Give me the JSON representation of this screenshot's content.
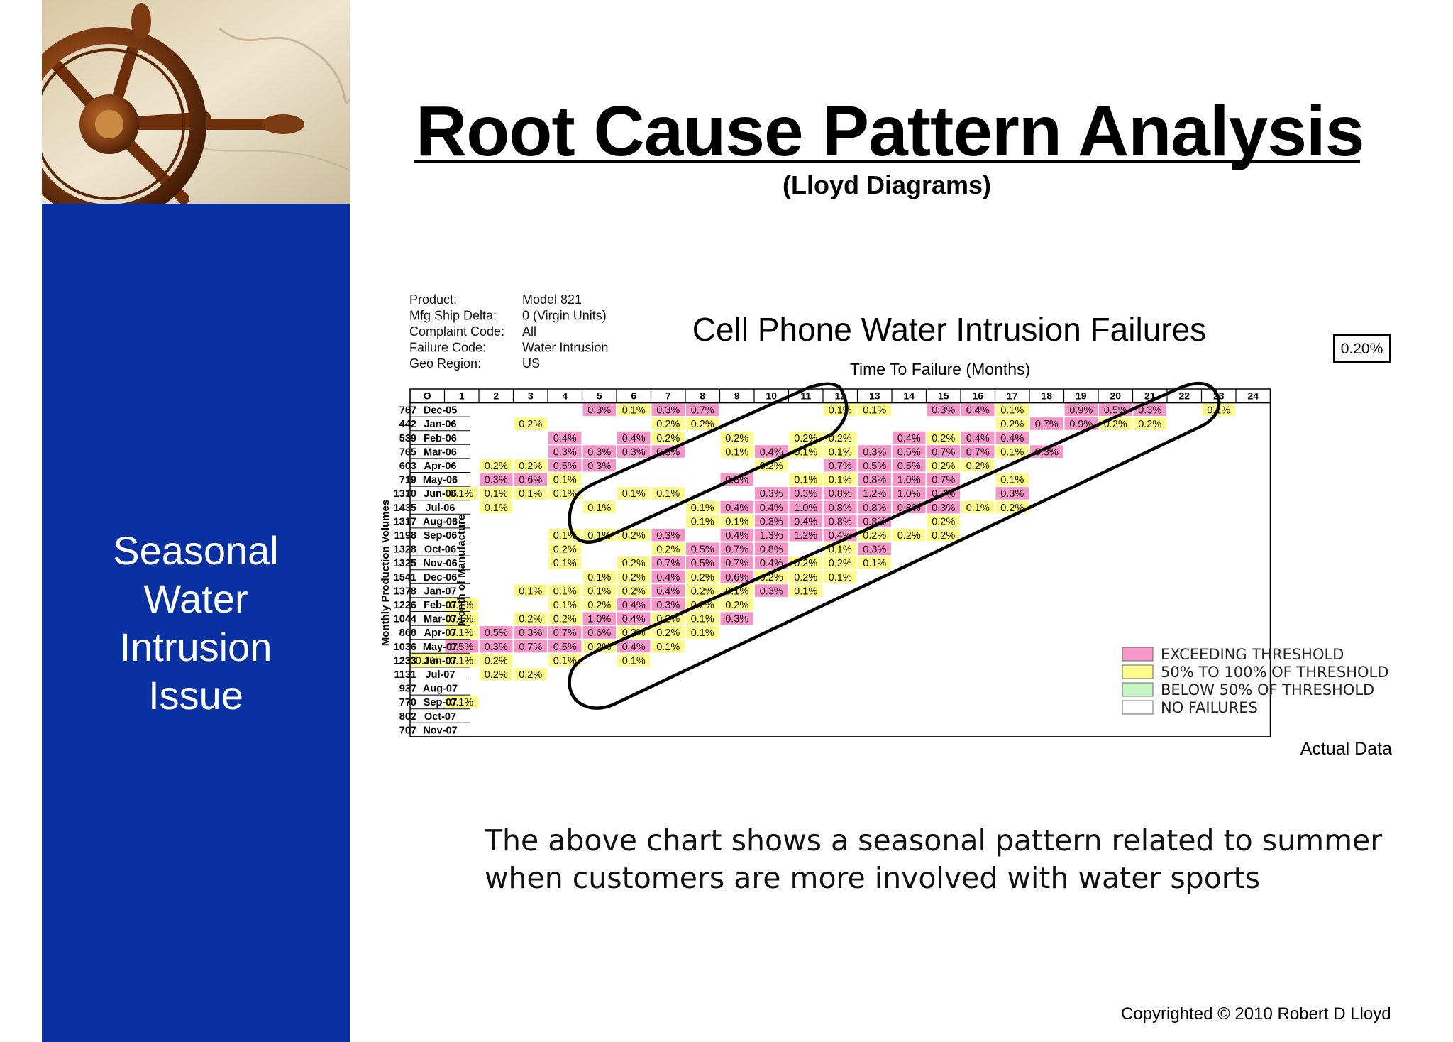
{
  "slide": {
    "title": "Root Cause Pattern Analysis",
    "subtitle": "(Lloyd Diagrams)",
    "side_text": [
      "Seasonal",
      "Water",
      "Intrusion",
      "Issue"
    ],
    "caption_lines": [
      "The above chart shows a seasonal pattern related to summer",
      "when customers are more involved with water sports"
    ],
    "copyright": "Copyrighted © 2010 Robert D Lloyd"
  },
  "colors": {
    "sidebar": "#0a31a1",
    "exceeding": "#f598c9",
    "mid": "#fdfb8c",
    "below": "#c6f5c4",
    "none": "#ffffff"
  },
  "chart_data": {
    "type": "heatmap",
    "title": "Cell Phone Water Intrusion Failures",
    "xlabel": "Time To Failure (Months)",
    "ylabel_volumes": "Monthly Production Volumes",
    "ylabel_months": "Month of Manufacture",
    "threshold_label": "0.20%",
    "footer_note": "Actual Data",
    "info": [
      {
        "label": "Product:",
        "value": "Model 821"
      },
      {
        "label": "Mfg Ship Delta:",
        "value": "0   (Virgin Units)"
      },
      {
        "label": "Complaint Code:",
        "value": "All"
      },
      {
        "label": "Failure Code:",
        "value": "Water Intrusion"
      },
      {
        "label": "Geo Region:",
        "value": "US"
      }
    ],
    "columns": [
      "O",
      "1",
      "2",
      "3",
      "4",
      "5",
      "6",
      "7",
      "8",
      "9",
      "10",
      "11",
      "12",
      "13",
      "14",
      "15",
      "16",
      "17",
      "18",
      "19",
      "20",
      "21",
      "22",
      "23",
      "24"
    ],
    "months": [
      "Dec-05",
      "Jan-06",
      "Feb-06",
      "Mar-06",
      "Apr-06",
      "May-06",
      "Jun-06",
      "Jul-06",
      "Aug-06",
      "Sep-06",
      "Oct-06",
      "Nov-06",
      "Dec-06",
      "Jan-07",
      "Feb-07",
      "Mar-07",
      "Apr-07",
      "May-07",
      "Jun-07",
      "Jul-07",
      "Aug-07",
      "Sep-07",
      "Oct-07",
      "Nov-07"
    ],
    "volumes": [
      "767",
      "442",
      "539",
      "765",
      "603",
      "719",
      "1310",
      "1435",
      "1317",
      "1198",
      "1328",
      "1325",
      "1541",
      "1378",
      "1226",
      "1044",
      "868",
      "1036",
      "1233",
      "1131",
      "937",
      "770",
      "802",
      "707"
    ],
    "rows": [
      [
        null,
        null,
        null,
        null,
        null,
        "0.3%",
        "0.1%",
        "0.3%",
        "0.7%",
        null,
        null,
        null,
        "0.1%",
        "0.1%",
        null,
        "0.3%",
        "0.4%",
        "0.1%",
        null,
        "0.9%",
        "0.5%",
        "0.3%",
        null,
        "0.1%",
        null
      ],
      [
        null,
        null,
        null,
        "0.2%",
        null,
        null,
        null,
        "0.2%",
        "0.2%",
        null,
        null,
        null,
        null,
        null,
        null,
        null,
        null,
        "0.2%",
        "0.7%",
        "0.9%",
        "0.2%",
        "0.2%",
        null,
        null,
        null
      ],
      [
        null,
        null,
        null,
        null,
        "0.4%",
        null,
        "0.4%",
        "0.2%",
        null,
        "0.2%",
        null,
        "0.2%",
        "0.2%",
        null,
        "0.4%",
        "0.2%",
        "0.4%",
        "0.4%",
        null,
        null,
        null,
        null,
        null,
        null,
        null
      ],
      [
        null,
        null,
        null,
        null,
        "0.3%",
        "0.3%",
        "0.3%",
        "0.3%",
        null,
        "0.1%",
        "0.4%",
        "0.1%",
        "0.1%",
        "0.3%",
        "0.5%",
        "0.7%",
        "0.7%",
        "0.1%",
        "0.3%",
        null,
        null,
        null,
        null,
        null,
        null
      ],
      [
        null,
        null,
        "0.2%",
        "0.2%",
        "0.5%",
        "0.3%",
        null,
        null,
        null,
        null,
        "0.2%",
        null,
        "0.7%",
        "0.5%",
        "0.5%",
        "0.2%",
        "0.2%",
        null,
        null,
        null,
        null,
        null,
        null,
        null,
        null
      ],
      [
        null,
        null,
        "0.3%",
        "0.6%",
        "0.1%",
        null,
        null,
        null,
        null,
        "0.3%",
        null,
        "0.1%",
        "0.1%",
        "0.8%",
        "1.0%",
        "0.7%",
        null,
        "0.1%",
        null,
        null,
        null,
        null,
        null,
        null,
        null
      ],
      [
        null,
        "0.1%",
        "0.1%",
        "0.1%",
        "0.1%",
        null,
        "0.1%",
        "0.1%",
        null,
        null,
        "0.3%",
        "0.3%",
        "0.8%",
        "1.2%",
        "1.0%",
        "0.7%",
        null,
        "0.3%",
        null,
        null,
        null,
        null,
        null,
        null,
        null
      ],
      [
        null,
        null,
        "0.1%",
        null,
        null,
        "0.1%",
        null,
        null,
        "0.1%",
        "0.4%",
        "0.4%",
        "1.0%",
        "0.8%",
        "0.8%",
        "0.8%",
        "0.3%",
        "0.1%",
        "0.2%",
        null,
        null,
        null,
        null,
        null,
        null,
        null
      ],
      [
        null,
        null,
        null,
        null,
        null,
        null,
        null,
        null,
        "0.1%",
        "0.1%",
        "0.3%",
        "0.4%",
        "0.8%",
        "0.3%",
        null,
        "0.2%",
        null,
        null,
        null,
        null,
        null,
        null,
        null,
        null,
        null
      ],
      [
        null,
        null,
        null,
        null,
        "0.1%",
        "0.1%",
        "0.2%",
        "0.3%",
        null,
        "0.4%",
        "1.3%",
        "1.2%",
        "0.4%",
        "0.2%",
        "0.2%",
        "0.2%",
        null,
        null,
        null,
        null,
        null,
        null,
        null,
        null,
        null
      ],
      [
        null,
        null,
        null,
        null,
        "0.2%",
        null,
        null,
        "0.2%",
        "0.5%",
        "0.7%",
        "0.8%",
        null,
        "0.1%",
        "0.3%",
        null,
        null,
        null,
        null,
        null,
        null,
        null,
        null,
        null,
        null,
        null
      ],
      [
        null,
        null,
        null,
        null,
        "0.1%",
        null,
        "0.2%",
        "0.7%",
        "0.5%",
        "0.7%",
        "0.4%",
        "0.2%",
        "0.2%",
        "0.1%",
        null,
        null,
        null,
        null,
        null,
        null,
        null,
        null,
        null,
        null,
        null
      ],
      [
        null,
        null,
        null,
        null,
        null,
        "0.1%",
        "0.2%",
        "0.4%",
        "0.2%",
        "0.6%",
        "0.2%",
        "0.2%",
        "0.1%",
        null,
        null,
        null,
        null,
        null,
        null,
        null,
        null,
        null,
        null,
        null,
        null
      ],
      [
        null,
        null,
        null,
        "0.1%",
        "0.1%",
        "0.1%",
        "0.2%",
        "0.4%",
        "0.2%",
        "0.1%",
        "0.3%",
        "0.1%",
        null,
        null,
        null,
        null,
        null,
        null,
        null,
        null,
        null,
        null,
        null,
        null,
        null
      ],
      [
        null,
        "0.1%",
        null,
        null,
        "0.1%",
        "0.2%",
        "0.4%",
        "0.3%",
        "0.2%",
        "0.2%",
        null,
        null,
        null,
        null,
        null,
        null,
        null,
        null,
        null,
        null,
        null,
        null,
        null,
        null,
        null
      ],
      [
        null,
        "0.1%",
        null,
        "0.2%",
        "0.2%",
        "1.0%",
        "0.4%",
        "0.2%",
        "0.1%",
        "0.3%",
        null,
        null,
        null,
        null,
        null,
        null,
        null,
        null,
        null,
        null,
        null,
        null,
        null,
        null,
        null
      ],
      [
        null,
        "0.1%",
        "0.5%",
        "0.3%",
        "0.7%",
        "0.6%",
        "0.2%",
        "0.2%",
        "0.1%",
        null,
        null,
        null,
        null,
        null,
        null,
        null,
        null,
        null,
        null,
        null,
        null,
        null,
        null,
        null,
        null
      ],
      [
        null,
        "0.5%",
        "0.3%",
        "0.7%",
        "0.5%",
        "0.2%",
        "0.4%",
        "0.1%",
        null,
        null,
        null,
        null,
        null,
        null,
        null,
        null,
        null,
        null,
        null,
        null,
        null,
        null,
        null,
        null,
        null
      ],
      [
        "0.1%",
        "0.1%",
        "0.2%",
        null,
        "0.1%",
        null,
        "0.1%",
        null,
        null,
        null,
        null,
        null,
        null,
        null,
        null,
        null,
        null,
        null,
        null,
        null,
        null,
        null,
        null,
        null,
        null
      ],
      [
        null,
        null,
        "0.2%",
        "0.2%",
        null,
        null,
        null,
        null,
        null,
        null,
        null,
        null,
        null,
        null,
        null,
        null,
        null,
        null,
        null,
        null,
        null,
        null,
        null,
        null,
        null
      ],
      [
        null,
        null,
        null,
        null,
        null,
        null,
        null,
        null,
        null,
        null,
        null,
        null,
        null,
        null,
        null,
        null,
        null,
        null,
        null,
        null,
        null,
        null,
        null,
        null,
        null
      ],
      [
        null,
        "0.1%",
        null,
        null,
        null,
        null,
        null,
        null,
        null,
        null,
        null,
        null,
        null,
        null,
        null,
        null,
        null,
        null,
        null,
        null,
        null,
        null,
        null,
        null,
        null
      ],
      [
        null,
        null,
        null,
        null,
        null,
        null,
        null,
        null,
        null,
        null,
        null,
        null,
        null,
        null,
        null,
        null,
        null,
        null,
        null,
        null,
        null,
        null,
        null,
        null,
        null
      ],
      [
        null,
        null,
        null,
        null,
        null,
        null,
        null,
        null,
        null,
        null,
        null,
        null,
        null,
        null,
        null,
        null,
        null,
        null,
        null,
        null,
        null,
        null,
        null,
        null,
        null
      ]
    ],
    "legend": [
      {
        "label": "EXCEEDING THRESHOLD",
        "color_key": "exceeding"
      },
      {
        "label": "50% TO 100% OF THRESHOLD",
        "color_key": "mid"
      },
      {
        "label": "BELOW 50% OF THRESHOLD",
        "color_key": "below"
      },
      {
        "label": "NO FAILURES",
        "color_key": "none"
      }
    ]
  }
}
